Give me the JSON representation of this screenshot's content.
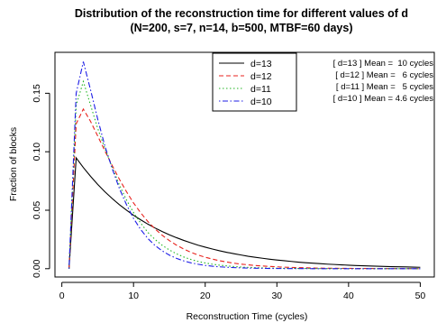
{
  "chart_data": {
    "type": "line",
    "title": "Distribution of the reconstruction time for different values of d",
    "subtitle": "(N=200, s=7, n=14, b=500, MTBF=60 days)",
    "xlabel": "Reconstruction Time (cycles)",
    "ylabel": "Fraction of blocks",
    "xlim": [
      -0.96,
      51.96
    ],
    "ylim": [
      -0.0071,
      0.185
    ],
    "x_ticks": [
      0,
      10,
      20,
      30,
      40,
      50
    ],
    "x_tick_labels": [
      "0",
      "10",
      "20",
      "30",
      "40",
      "50"
    ],
    "y_ticks": [
      0.0,
      0.05,
      0.1,
      0.15
    ],
    "y_tick_labels": [
      "0.00",
      "0.05",
      "0.10",
      "0.15"
    ],
    "grid": false,
    "legend_position": "top-center",
    "x": [
      1,
      2,
      3,
      4,
      5,
      6,
      7,
      8,
      9,
      10,
      11,
      12,
      13,
      14,
      15,
      16,
      17,
      18,
      19,
      20,
      21,
      22,
      23,
      24,
      25,
      26,
      27,
      28,
      29,
      30,
      31,
      32,
      33,
      34,
      35,
      36,
      37,
      38,
      39,
      40,
      41,
      42,
      43,
      44,
      45,
      46,
      47,
      48,
      49,
      50
    ],
    "series": [
      {
        "name": "d=13",
        "color": "#000000",
        "dash": "solid",
        "values": [
          0.0,
          0.0947,
          0.0865,
          0.079,
          0.0721,
          0.0658,
          0.0601,
          0.0549,
          0.0501,
          0.0457,
          0.0418,
          0.0381,
          0.0348,
          0.0318,
          0.029,
          0.0265,
          0.0242,
          0.0221,
          0.0201,
          0.0184,
          0.0168,
          0.0153,
          0.014,
          0.0128,
          0.0117,
          0.0106,
          0.0097,
          0.0089,
          0.0081,
          0.0074,
          0.0068,
          0.0062,
          0.0056,
          0.0051,
          0.0047,
          0.0043,
          0.0039,
          0.0036,
          0.0033,
          0.003,
          0.0027,
          0.0025,
          0.0023,
          0.0021,
          0.0019,
          0.0017,
          0.0016,
          0.0015,
          0.0013,
          0.0012
        ]
      },
      {
        "name": "d=12",
        "color": "#e8211c",
        "dash": "dashed",
        "values": [
          0.0,
          0.1239,
          0.1365,
          0.126,
          0.1135,
          0.1008,
          0.0885,
          0.0768,
          0.066,
          0.0562,
          0.0478,
          0.0403,
          0.034,
          0.0286,
          0.024,
          0.0201,
          0.0168,
          0.014,
          0.0117,
          0.0098,
          0.0082,
          0.0068,
          0.0057,
          0.0047,
          0.0039,
          0.0033,
          0.0027,
          0.0023,
          0.0019,
          0.0016,
          0.0013,
          0.0011,
          0.0009,
          0.0008,
          0.0006,
          0.0005,
          0.0004,
          0.0004,
          0.0003,
          0.0003,
          0.0002,
          0.0002,
          0.0002,
          0.0001,
          0.0001,
          0.0001,
          0.0001,
          0.0001,
          0.0001,
          0.0
        ]
      },
      {
        "name": "d=11",
        "color": "#21b521",
        "dash": "dotted",
        "values": [
          0.0,
          0.14,
          0.16,
          0.14,
          0.12,
          0.103,
          0.087,
          0.072,
          0.059,
          0.048,
          0.039,
          0.031,
          0.025,
          0.02,
          0.016,
          0.0127,
          0.01,
          0.0079,
          0.0062,
          0.0049,
          0.0038,
          0.003,
          0.0024,
          0.0018,
          0.0014,
          0.0011,
          0.0009,
          0.0007,
          0.0005,
          0.0004,
          0.0003,
          0.0003,
          0.0002,
          0.0002,
          0.0001,
          0.0001,
          0.0001,
          0.0001,
          0.0001,
          0.0,
          0.0,
          0.0,
          0.0,
          0.0,
          0.0,
          0.0,
          0.0,
          0.0,
          0.0,
          0.0
        ]
      },
      {
        "name": "d=10",
        "color": "#1c1ce6",
        "dash": "dotdash",
        "values": [
          0.0,
          0.15,
          0.177,
          0.153,
          0.128,
          0.105,
          0.086,
          0.069,
          0.055,
          0.043,
          0.0335,
          0.0258,
          0.0198,
          0.0152,
          0.0116,
          0.0088,
          0.0067,
          0.005,
          0.0038,
          0.0028,
          0.0021,
          0.0016,
          0.0012,
          0.0009,
          0.0007,
          0.0005,
          0.0004,
          0.0003,
          0.0002,
          0.0002,
          0.0001,
          0.0001,
          0.0001,
          0.0001,
          0.0,
          0.0,
          0.0,
          0.0,
          0.0,
          0.0,
          0.0,
          0.0,
          0.0,
          0.0,
          0.0,
          0.0,
          0.0,
          0.0,
          0.0,
          0.0
        ]
      }
    ],
    "annotations": [
      "[ d=13 ] Mean =  10 cycles",
      "[ d=12 ] Mean =   6 cycles",
      "[ d=11 ] Mean =   5 cycles",
      "[ d=10 ] Mean = 4.6 cycles"
    ]
  }
}
